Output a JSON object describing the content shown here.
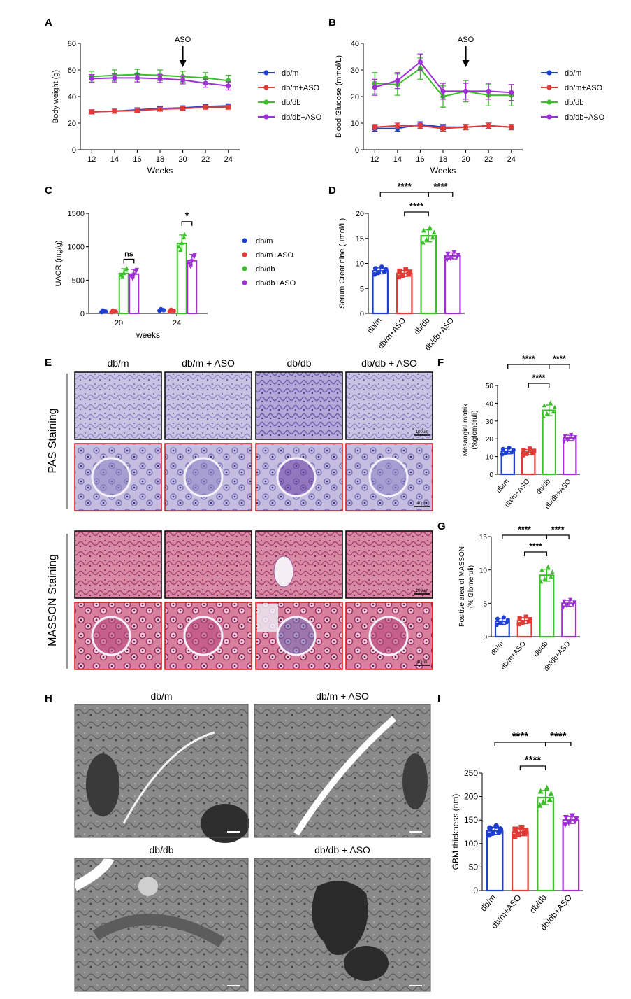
{
  "colors": {
    "dbm": "#1f3fd1",
    "dbmaso": "#e23b36",
    "dbdb": "#3cbf2a",
    "dbdbaso": "#a02fd6"
  },
  "panels": {
    "A": "A",
    "B": "B",
    "C": "C",
    "D": "D",
    "E": "E",
    "F": "F",
    "G": "G",
    "H": "H",
    "I": "I"
  },
  "legend_groups": [
    "db/m",
    "db/m+ASO",
    "db/db",
    "db/db+ASO"
  ],
  "histology": {
    "columns": [
      "db/m",
      "db/m + ASO",
      "db/db",
      "db/db + ASO"
    ],
    "pas_label": "PAS Staining",
    "masson_label": "MASSON Staining",
    "scale_low": "100µm",
    "scale_high": "40µm"
  },
  "tem": {
    "titles": [
      "db/m",
      "db/m + ASO",
      "db/db",
      "db/db + ASO"
    ]
  },
  "chart_data": [
    {
      "id": "A",
      "type": "line",
      "xlabel": "Weeks",
      "ylabel": "Body weight (g)",
      "x": [
        12,
        14,
        16,
        18,
        20,
        22,
        24
      ],
      "xlim": [
        11,
        25
      ],
      "ylim": [
        0,
        80
      ],
      "yticks": [
        0,
        20,
        40,
        60,
        80
      ],
      "annotation": "ASO",
      "annotation_x": 20,
      "series": [
        {
          "name": "db/m",
          "values": [
            28.5,
            29,
            30,
            31,
            31.5,
            32.5,
            33
          ],
          "err": 1.5
        },
        {
          "name": "db/m+ASO",
          "values": [
            28.5,
            29,
            29.5,
            30.5,
            31,
            32,
            32
          ],
          "err": 1.5
        },
        {
          "name": "db/db",
          "values": [
            55,
            56,
            56.5,
            56,
            55,
            54,
            52
          ],
          "err": 4
        },
        {
          "name": "db/db+ASO",
          "values": [
            53.5,
            54,
            54,
            53.5,
            52.5,
            50,
            48
          ],
          "err": 3
        }
      ]
    },
    {
      "id": "B",
      "type": "line",
      "xlabel": "Weeks",
      "ylabel": "Blood Glucose (mmol/L)",
      "x": [
        12,
        14,
        16,
        18,
        20,
        22,
        24
      ],
      "xlim": [
        11,
        25
      ],
      "ylim": [
        0,
        40
      ],
      "yticks": [
        0,
        10,
        20,
        30,
        40
      ],
      "annotation": "ASO",
      "annotation_x": 20,
      "series": [
        {
          "name": "db/m",
          "values": [
            8,
            8,
            9.5,
            8.5,
            8.5,
            9,
            8.5
          ],
          "err": 1
        },
        {
          "name": "db/m+ASO",
          "values": [
            8.5,
            9,
            9,
            8,
            8.5,
            9,
            8.5
          ],
          "err": 1
        },
        {
          "name": "db/db",
          "values": [
            25,
            24.5,
            30.5,
            20,
            22,
            20.5,
            20.5
          ],
          "err": 4
        },
        {
          "name": "db/db+ASO",
          "values": [
            23.5,
            26,
            33,
            22,
            22,
            22,
            21.5
          ],
          "err": 3
        }
      ]
    },
    {
      "id": "C",
      "type": "bar",
      "xlabel": "weeks",
      "ylabel": "UACR (mg/g)",
      "categories": [
        "20",
        "24"
      ],
      "ylim": [
        0,
        1500
      ],
      "yticks": [
        0,
        500,
        1000,
        1500
      ],
      "series": [
        {
          "name": "db/m",
          "values": [
            20,
            40
          ]
        },
        {
          "name": "db/m+ASO",
          "values": [
            20,
            30
          ]
        },
        {
          "name": "db/db",
          "values": [
            600,
            1050
          ]
        },
        {
          "name": "db/db+ASO",
          "values": [
            590,
            790
          ]
        }
      ],
      "comparisons": [
        {
          "category": 0,
          "from": 2,
          "to": 3,
          "label": "ns"
        },
        {
          "category": 1,
          "from": 2,
          "to": 3,
          "label": "*"
        }
      ]
    },
    {
      "id": "D",
      "type": "bar",
      "ylabel": "Serum Creatinine (µmol/L)",
      "categories": [
        "db/m",
        "db/m+ASO",
        "db/db",
        "db/db+ASO"
      ],
      "values": [
        8.5,
        8,
        15.5,
        11.5
      ],
      "ylim": [
        0,
        20
      ],
      "yticks": [
        0,
        5,
        10,
        15,
        20
      ],
      "comparisons": [
        {
          "from": 0,
          "to": 2,
          "label": "****",
          "level": 2
        },
        {
          "from": 2,
          "to": 3,
          "label": "****",
          "level": 2
        },
        {
          "from": 1,
          "to": 2,
          "label": "****",
          "level": 1
        }
      ]
    },
    {
      "id": "F",
      "type": "bar",
      "ylabel": "Mesangial matrix (%glomeruli)",
      "categories": [
        "db/m",
        "db/m+ASO",
        "db/db",
        "db/db+ASO"
      ],
      "values": [
        13,
        12.5,
        36,
        20.5
      ],
      "ylim": [
        0,
        50
      ],
      "yticks": [
        0,
        10,
        20,
        30,
        40,
        50
      ],
      "comparisons": [
        {
          "from": 0,
          "to": 2,
          "label": "****",
          "level": 2
        },
        {
          "from": 2,
          "to": 3,
          "label": "****",
          "level": 2
        },
        {
          "from": 1,
          "to": 2,
          "label": "****",
          "level": 1
        }
      ]
    },
    {
      "id": "G",
      "type": "bar",
      "ylabel": "Positive area of MASSON (% Glomeruli)",
      "categories": [
        "db/m",
        "db/m+ASO",
        "db/db",
        "db/db+ASO"
      ],
      "values": [
        2.3,
        2.4,
        9.2,
        5.0
      ],
      "ylim": [
        0,
        15
      ],
      "yticks": [
        0,
        5,
        10,
        15
      ],
      "comparisons": [
        {
          "from": 0,
          "to": 2,
          "label": "****",
          "level": 2
        },
        {
          "from": 2,
          "to": 3,
          "label": "****",
          "level": 2
        },
        {
          "from": 1,
          "to": 2,
          "label": "****",
          "level": 1
        }
      ]
    },
    {
      "id": "I",
      "type": "bar",
      "ylabel": "GBM thickness (nm)",
      "categories": [
        "db/m",
        "db/m+ASO",
        "db/db",
        "db/db+ASO"
      ],
      "values": [
        127,
        124,
        198,
        150
      ],
      "ylim": [
        0,
        250
      ],
      "yticks": [
        0,
        50,
        100,
        150,
        200,
        250
      ],
      "comparisons": [
        {
          "from": 0,
          "to": 2,
          "label": "****",
          "level": 2
        },
        {
          "from": 2,
          "to": 3,
          "label": "****",
          "level": 2
        },
        {
          "from": 1,
          "to": 2,
          "label": "****",
          "level": 1
        }
      ]
    }
  ]
}
